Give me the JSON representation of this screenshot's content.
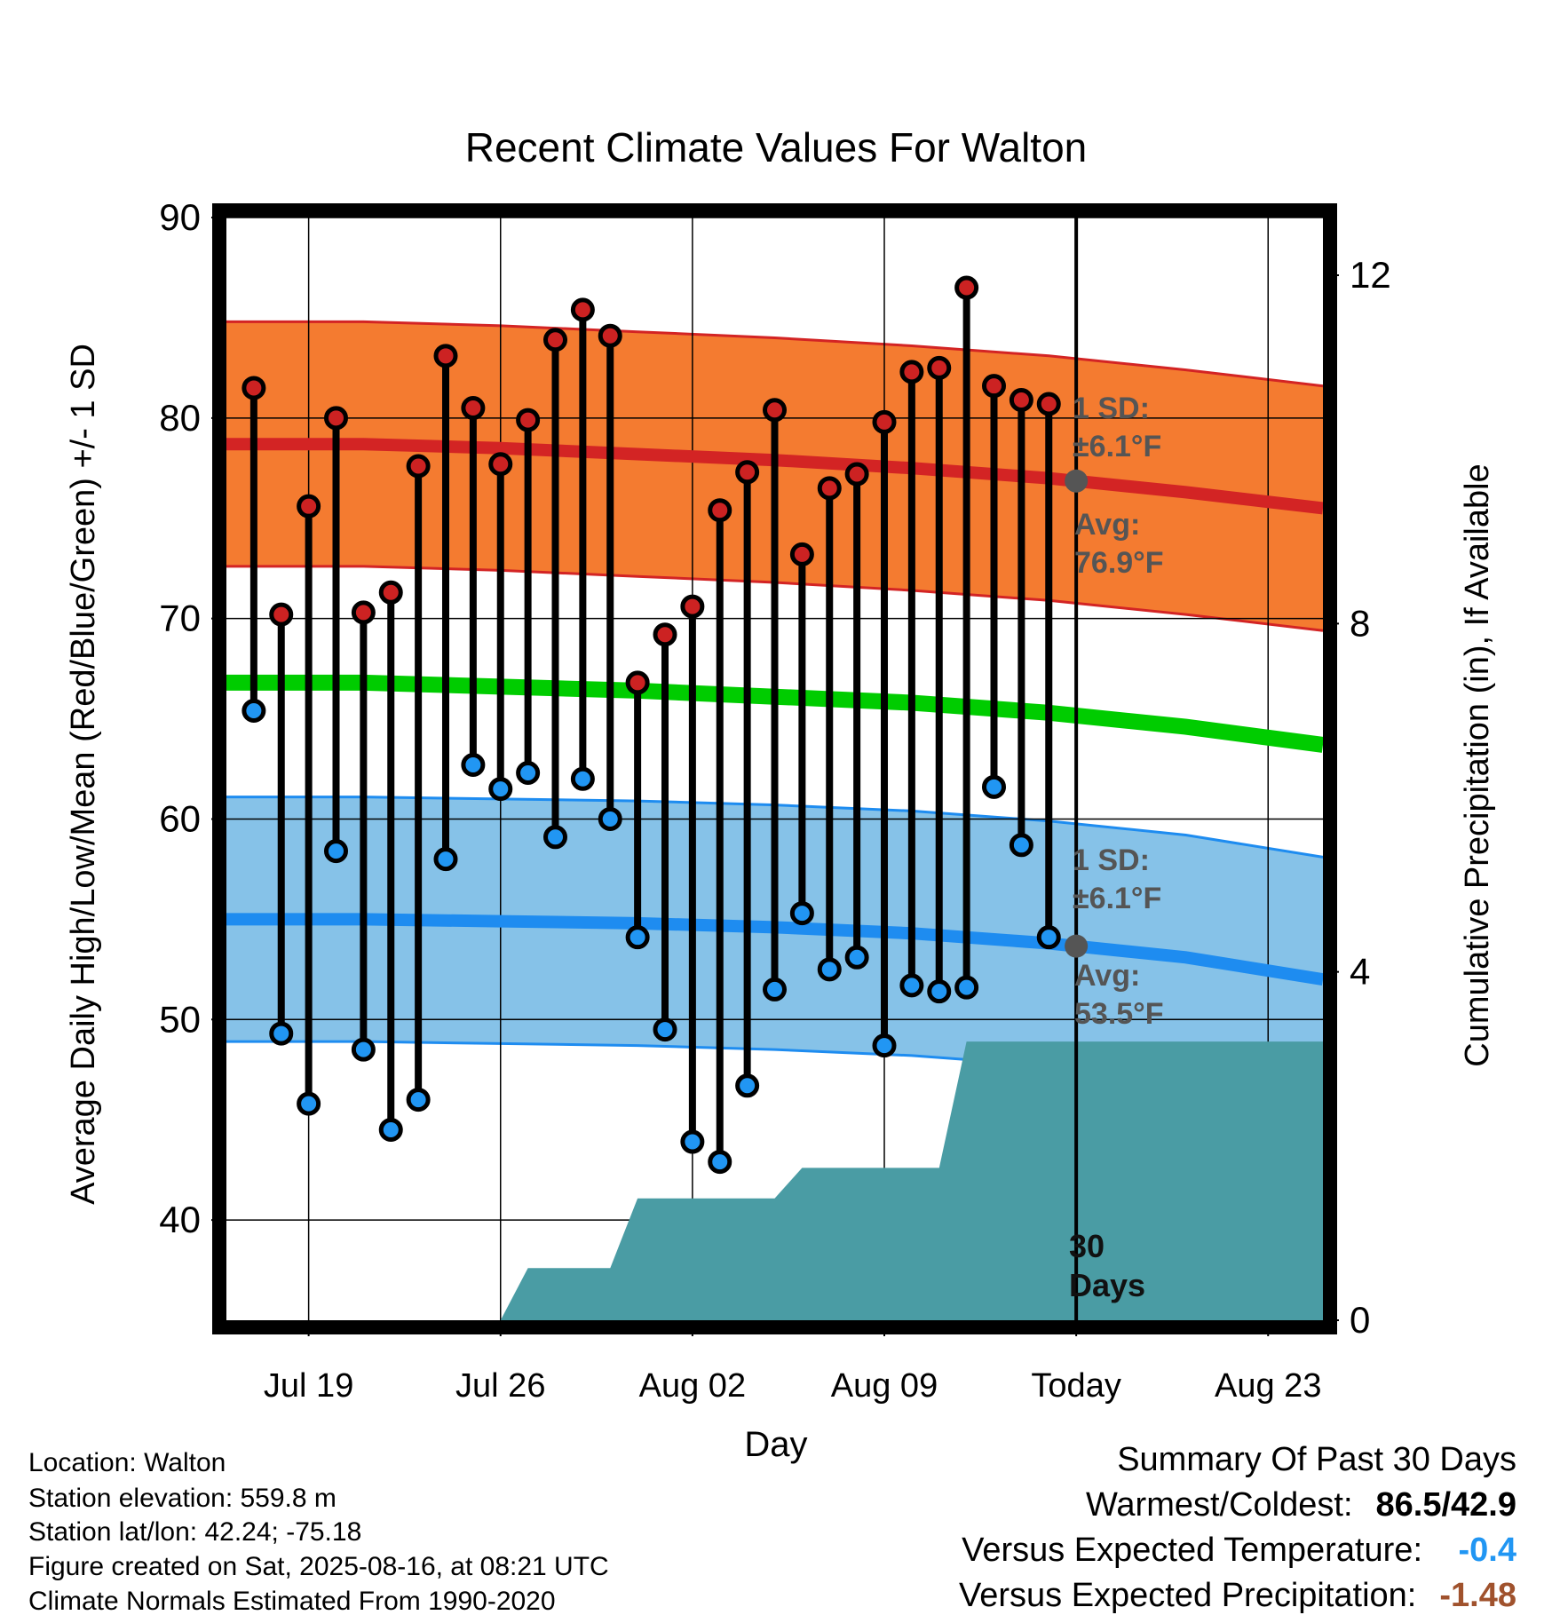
{
  "chart_data": {
    "type": "line",
    "title": "Recent Climate Values For Walton",
    "xlabel": "Day",
    "ylabel": "Average Daily High/Low/Mean (Red/Blue/Green) +/- 1 SD",
    "y2label": "Cumulative Precipitation (in), If Available",
    "ylim": [
      35,
      90
    ],
    "yticks": [
      40,
      50,
      60,
      70,
      80,
      90
    ],
    "y2lim": [
      0,
      12
    ],
    "y2ticks": [
      0,
      4,
      8,
      12
    ],
    "x_range_days": [
      "2025-07-16",
      "2025-08-25"
    ],
    "x_tick_dates": [
      "2025-07-19",
      "2025-07-26",
      "2025-08-02",
      "2025-08-09",
      "2025-08-16",
      "2025-08-23"
    ],
    "x_tick_labels": [
      "Jul 19",
      "Jul 26",
      "Aug 02",
      "Aug 09",
      "Today",
      "Aug 23"
    ],
    "today": "2025-08-16",
    "grid": true,
    "observed": {
      "dates": [
        "2025-07-17",
        "2025-07-18",
        "2025-07-19",
        "2025-07-20",
        "2025-07-21",
        "2025-07-22",
        "2025-07-23",
        "2025-07-24",
        "2025-07-25",
        "2025-07-26",
        "2025-07-27",
        "2025-07-28",
        "2025-07-29",
        "2025-07-30",
        "2025-07-31",
        "2025-08-01",
        "2025-08-02",
        "2025-08-03",
        "2025-08-04",
        "2025-08-05",
        "2025-08-06",
        "2025-08-07",
        "2025-08-08",
        "2025-08-09",
        "2025-08-10",
        "2025-08-11",
        "2025-08-12",
        "2025-08-13",
        "2025-08-14",
        "2025-08-15"
      ],
      "high": [
        81.5,
        70.2,
        75.6,
        80.0,
        70.3,
        71.3,
        77.6,
        83.1,
        80.5,
        77.7,
        79.9,
        83.9,
        85.4,
        84.1,
        66.8,
        69.2,
        70.6,
        75.4,
        77.3,
        80.4,
        73.2,
        76.5,
        77.2,
        79.8,
        82.3,
        82.5,
        86.5,
        81.6,
        80.9,
        80.7
      ],
      "low": [
        65.4,
        49.3,
        45.8,
        58.4,
        48.5,
        44.5,
        46.0,
        58.0,
        62.7,
        61.5,
        62.3,
        59.1,
        62.0,
        60.0,
        54.1,
        49.5,
        43.9,
        42.9,
        46.7,
        51.5,
        55.3,
        52.5,
        53.1,
        48.7,
        51.7,
        51.4,
        51.6,
        61.6,
        58.7,
        54.1
      ]
    },
    "normals": {
      "dates": [
        "2025-07-16",
        "2025-07-21",
        "2025-07-26",
        "2025-07-31",
        "2025-08-05",
        "2025-08-10",
        "2025-08-15",
        "2025-08-20",
        "2025-08-25"
      ],
      "high_avg": [
        78.7,
        78.7,
        78.5,
        78.2,
        77.9,
        77.5,
        77.0,
        76.3,
        75.5
      ],
      "low_avg": [
        55.0,
        55.0,
        54.9,
        54.8,
        54.6,
        54.3,
        53.8,
        53.1,
        52.0
      ],
      "mean_avg": [
        66.8,
        66.8,
        66.6,
        66.4,
        66.1,
        65.8,
        65.3,
        64.6,
        63.7
      ],
      "high_sd": 6.1,
      "low_sd": 6.1
    },
    "precip_cumulative": {
      "dates": [
        "2025-07-26",
        "2025-07-27",
        "2025-07-30",
        "2025-07-31",
        "2025-08-05",
        "2025-08-06",
        "2025-08-11",
        "2025-08-12",
        "2025-08-25"
      ],
      "values": [
        0.0,
        0.6,
        0.6,
        1.4,
        1.4,
        1.75,
        1.75,
        3.2,
        3.2
      ]
    },
    "annotations": {
      "high_sd_label": "1 SD:",
      "high_sd_value": "±6.1°F",
      "high_avg_label": "Avg:",
      "high_avg_value": "76.9°F",
      "low_sd_label": "1 SD:",
      "low_sd_value": "±6.1°F",
      "low_avg_label": "Avg:",
      "low_avg_value": "53.5°F",
      "period_label_1": "30",
      "period_label_2": "Days"
    },
    "colors": {
      "high_band": "#f47b30",
      "high_line": "#d32424",
      "low_band": "#86c2e8",
      "low_line": "#1e8cf0",
      "mean_line": "#00cc00",
      "precip": "#4a9ca4",
      "high_marker": "#cc2222",
      "low_marker": "#2196f3",
      "annotation": "#555555"
    }
  },
  "footer": {
    "location": "Location: Walton",
    "elevation": "Station elevation: 559.8 m",
    "latlon": "Station lat/lon: 42.24; -75.18",
    "created": "Figure created on Sat, 2025-08-16, at 08:21 UTC",
    "normals": "Climate Normals Estimated From 1990-2020"
  },
  "summary": {
    "title": "Summary Of Past 30 Days",
    "warm_cold_label": "Warmest/Coldest:",
    "warm_cold_value": "86.5/42.9",
    "temp_label": "Versus Expected Temperature:",
    "temp_value": "-0.4",
    "temp_color": "#2196f3",
    "precip_label": "Versus Expected Precipitation:",
    "precip_value": "-1.48",
    "precip_color": "#a0522d"
  }
}
